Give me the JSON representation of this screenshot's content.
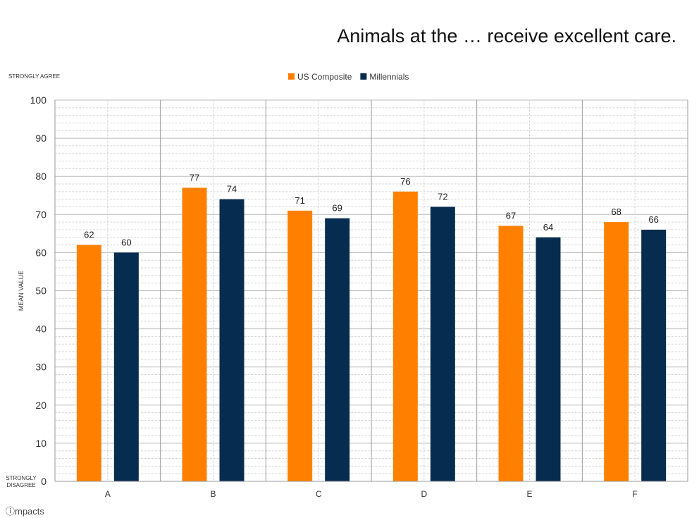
{
  "chart_data": {
    "type": "bar",
    "title": "Animals at the … receive excellent care.",
    "ylabel": "MEAN VALUE",
    "xlabel": "",
    "ylim": [
      0,
      100
    ],
    "yticks": [
      0,
      10,
      20,
      30,
      40,
      50,
      60,
      70,
      80,
      90,
      100
    ],
    "grid": true,
    "legend_placement": "top-center",
    "categories": [
      "A",
      "B",
      "C",
      "D",
      "E",
      "F"
    ],
    "series": [
      {
        "name": "US Composite",
        "color": "#FF7F00",
        "values": [
          62,
          77,
          71,
          76,
          67,
          68
        ]
      },
      {
        "name": "Millennials",
        "color": "#062C4F",
        "values": [
          60,
          74,
          69,
          72,
          64,
          66
        ]
      }
    ],
    "annotations": {
      "top": "STRONGLY AGREE",
      "bottom": "STRONGLY DISAGREE"
    }
  },
  "logo": "ⓘmpacts"
}
